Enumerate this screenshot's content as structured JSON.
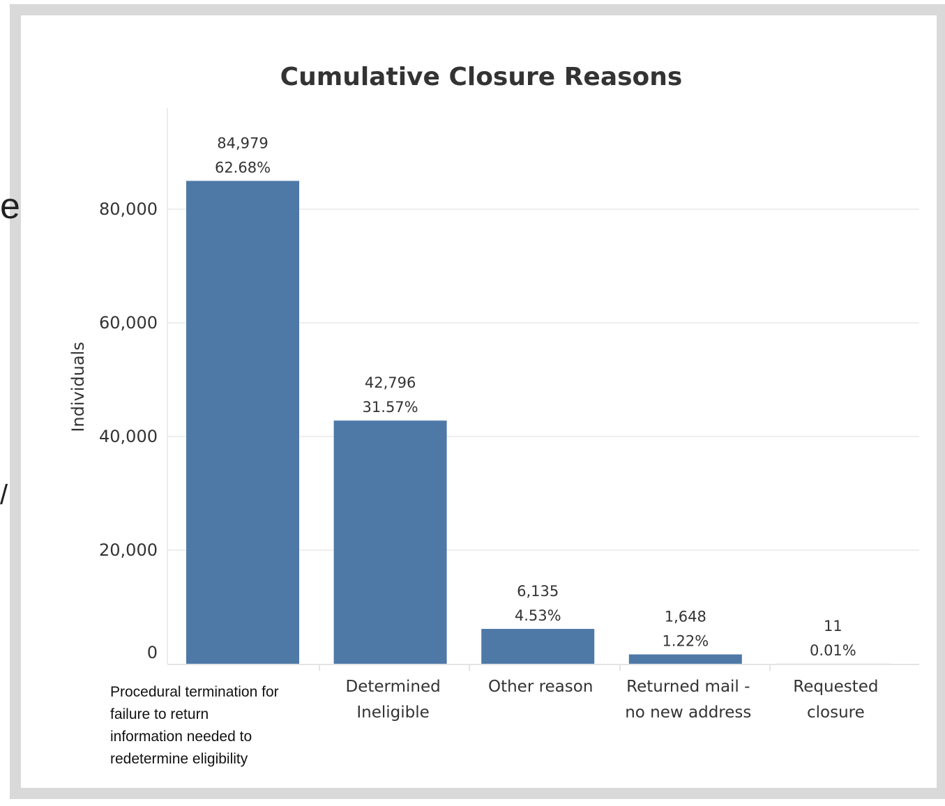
{
  "chart_data": {
    "type": "bar",
    "title": "Cumulative Closure Reasons",
    "xlabel": "",
    "ylabel": "Individuals",
    "ylim": [
      0,
      90000
    ],
    "yticks": [
      0,
      20000,
      40000,
      60000,
      80000
    ],
    "ytick_labels": [
      "0",
      "20,000",
      "40,000",
      "60,000",
      "80,000"
    ],
    "grid": true,
    "bar_color": "#4e79a7",
    "categories": [
      "Procedural termination for failure to return information needed to redetermine eligibility",
      "Determined Ineligible",
      "Other reason",
      "Returned mail - no new address",
      "Requested closure"
    ],
    "category_lines": [
      [
        "Procedural termination for",
        "failure to return",
        "information needed to",
        "redetermine eligibility"
      ],
      [
        "Determined",
        "Ineligible"
      ],
      [
        "Other reason"
      ],
      [
        "Returned mail -",
        "no new address"
      ],
      [
        "Requested",
        "closure"
      ]
    ],
    "values": [
      84979,
      42796,
      6135,
      1648,
      11
    ],
    "value_labels": [
      "84,979",
      "42,796",
      "6,135",
      "1,648",
      "11"
    ],
    "percent_labels": [
      "62.68%",
      "31.57%",
      "4.53%",
      "1.22%",
      "0.01%"
    ]
  },
  "stray_glyphs": [
    "e",
    "/"
  ]
}
